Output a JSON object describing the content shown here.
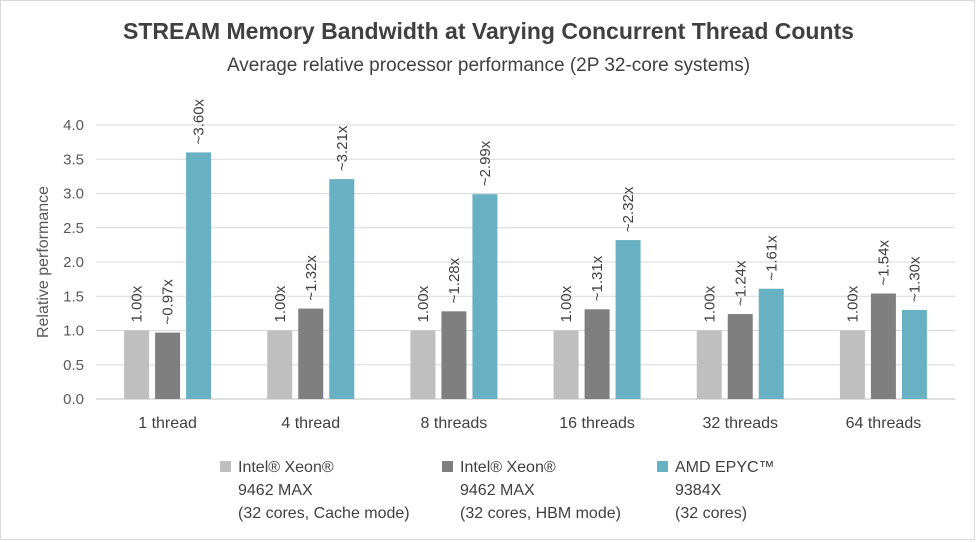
{
  "chart_data": {
    "type": "bar",
    "title": "STREAM Memory Bandwidth  at Varying Concurrent Thread Counts",
    "subtitle": "Average relative processor performance (2P 32-core systems)",
    "xlabel": "",
    "ylabel": "Relative performance",
    "ylim": [
      0,
      4.0
    ],
    "yticks": [
      "0.0",
      "0.5",
      "1.0",
      "1.5",
      "2.0",
      "2.5",
      "3.0",
      "3.5",
      "4.0"
    ],
    "grid": true,
    "legend_position": "bottom",
    "categories": [
      "1 thread",
      "4 thread",
      "8 threads",
      "16 threads",
      "32 threads",
      "64 threads"
    ],
    "series": [
      {
        "name": "Intel® Xeon® 9462 MAX (32 cores, Cache mode)",
        "legend_lines": [
          "Intel® Xeon®",
          "9462 MAX",
          "(32 cores, Cache mode)"
        ],
        "color": "#bfbfbf",
        "values": [
          1.0,
          1.0,
          1.0,
          1.0,
          1.0,
          1.0
        ],
        "labels": [
          "1.00x",
          "1.00x",
          "1.00x",
          "1.00x",
          "1.00x",
          "1.00x"
        ]
      },
      {
        "name": "Intel® Xeon® 9462 MAX (32 cores, HBM mode)",
        "legend_lines": [
          "Intel® Xeon®",
          "9462 MAX",
          "(32 cores, HBM mode)"
        ],
        "color": "#7f7f7f",
        "values": [
          0.97,
          1.32,
          1.28,
          1.31,
          1.24,
          1.54
        ],
        "labels": [
          "~0.97x",
          "~1.32x",
          "~1.28x",
          "~1.31x",
          "~1.24x",
          "~1.54x"
        ]
      },
      {
        "name": "AMD EPYC™ 9384X (32 cores)",
        "legend_lines": [
          "AMD EPYC™",
          "9384X",
          "(32 cores)"
        ],
        "color": "#67b1c2",
        "values": [
          3.6,
          3.21,
          2.99,
          2.32,
          1.61,
          1.3
        ],
        "labels": [
          "~3.60x",
          "~3.21x",
          "~2.99x",
          "~2.32x",
          "~1.61x",
          "~1.30x"
        ]
      }
    ]
  }
}
